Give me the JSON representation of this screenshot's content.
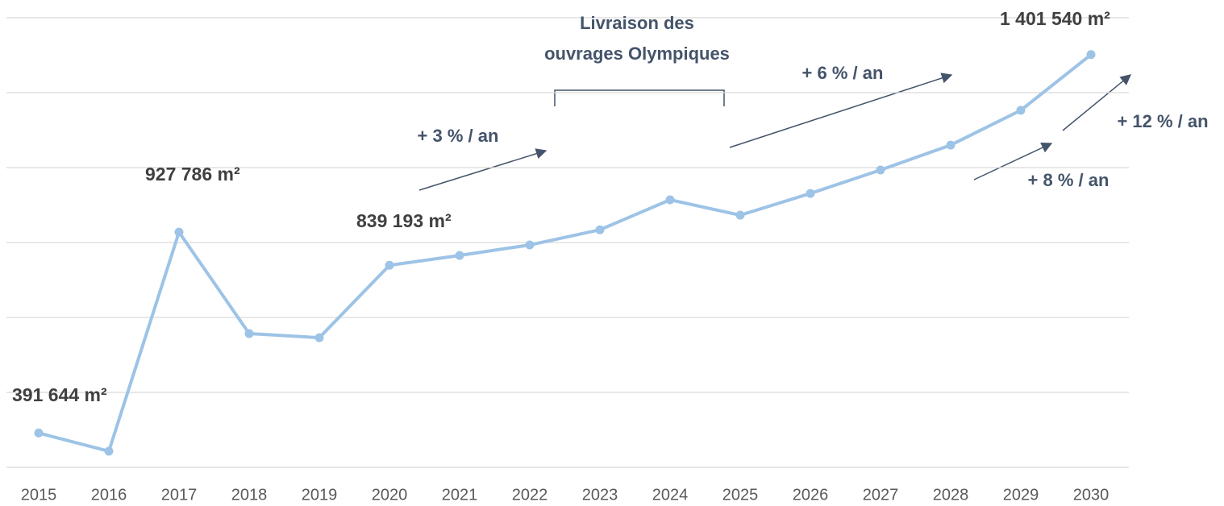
{
  "chart_data": {
    "type": "line",
    "categories": [
      "2015",
      "2016",
      "2017",
      "2018",
      "2019",
      "2020",
      "2021",
      "2022",
      "2023",
      "2024",
      "2025",
      "2026",
      "2027",
      "2028",
      "2029",
      "2030"
    ],
    "series": [
      {
        "color": "#9dc3e6",
        "values": [
          391644,
          343000,
          927786,
          657000,
          646000,
          839193,
          865600,
          893500,
          934000,
          1014000,
          973000,
          1031000,
          1093500,
          1160000,
          1253000,
          1401540
        ],
        "value_labels": [
          "391 644   m²",
          null,
          "927 786   m²",
          null,
          null,
          "839 193   m²",
          null,
          null,
          null,
          null,
          null,
          null,
          null,
          null,
          null,
          "1 401 540 m²"
        ]
      }
    ],
    "ylim": [
      300000,
      1500000
    ],
    "yticks": [
      300000,
      500000,
      700000,
      900000,
      1100000,
      1300000,
      1500000
    ],
    "grid": true,
    "annotations": [
      "Livraison des",
      "ouvrages Olympiques",
      "+ 3 % / an",
      "+ 6 % / an",
      "+ 8 % / an",
      "+ 12 % / an"
    ]
  }
}
